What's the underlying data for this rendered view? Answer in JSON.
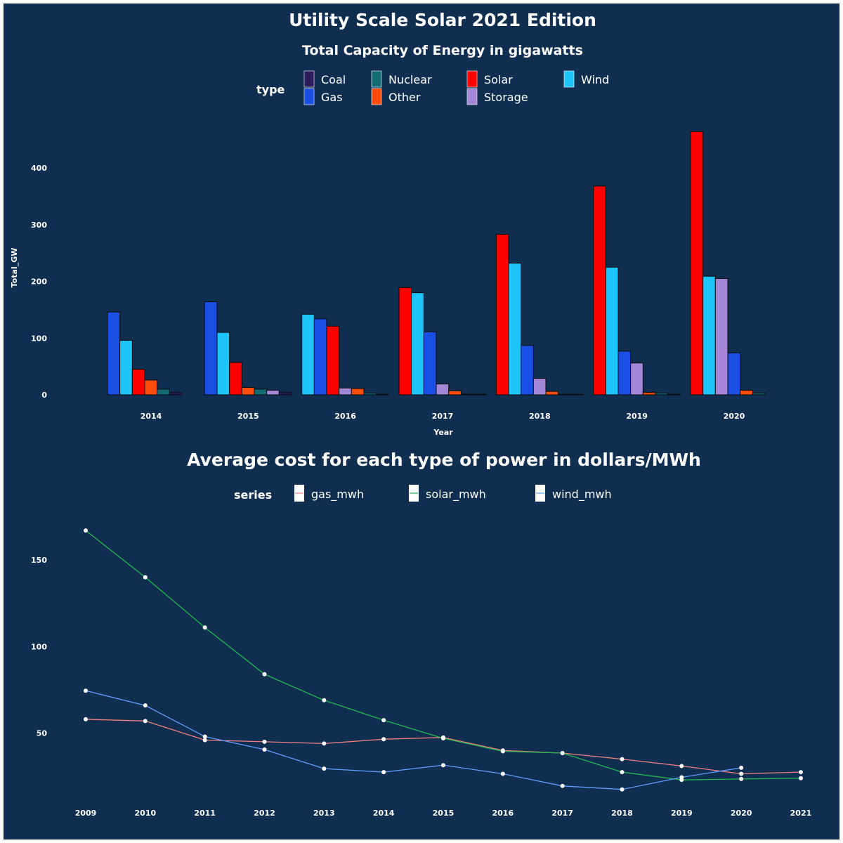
{
  "title": "Utility Scale Solar 2021 Edition",
  "chart_data": [
    {
      "type": "bar",
      "title": "Total Capacity of Energy in gigawatts",
      "xlabel": "Year",
      "ylabel": "Total_GW",
      "ylim": [
        0,
        465
      ],
      "yticks": [
        0,
        100,
        200,
        300,
        400
      ],
      "legend_title": "type",
      "legend_position": "top",
      "legend": [
        {
          "name": "Coal",
          "color": "#2c1a5e"
        },
        {
          "name": "Gas",
          "color": "#1a4fe6"
        },
        {
          "name": "Nuclear",
          "color": "#136b74"
        },
        {
          "name": "Other",
          "color": "#fc4e0a"
        },
        {
          "name": "Solar",
          "color": "#ff0000"
        },
        {
          "name": "Storage",
          "color": "#a387d6"
        },
        {
          "name": "Wind",
          "color": "#1ec5fb"
        }
      ],
      "categories": [
        "2014",
        "2015",
        "2016",
        "2017",
        "2018",
        "2019",
        "2020"
      ],
      "groups": [
        {
          "year": "2014",
          "bars": [
            {
              "type": "Gas",
              "value": 146
            },
            {
              "type": "Wind",
              "value": 96
            },
            {
              "type": "Solar",
              "value": 45
            },
            {
              "type": "Other",
              "value": 26
            },
            {
              "type": "Nuclear",
              "value": 10
            },
            {
              "type": "Coal",
              "value": 4
            }
          ]
        },
        {
          "year": "2015",
          "bars": [
            {
              "type": "Gas",
              "value": 164
            },
            {
              "type": "Wind",
              "value": 110
            },
            {
              "type": "Solar",
              "value": 57
            },
            {
              "type": "Other",
              "value": 13
            },
            {
              "type": "Nuclear",
              "value": 10
            },
            {
              "type": "Storage",
              "value": 8
            },
            {
              "type": "Coal",
              "value": 4
            }
          ]
        },
        {
          "year": "2016",
          "bars": [
            {
              "type": "Wind",
              "value": 142
            },
            {
              "type": "Gas",
              "value": 134
            },
            {
              "type": "Solar",
              "value": 121
            },
            {
              "type": "Storage",
              "value": 12
            },
            {
              "type": "Other",
              "value": 11
            },
            {
              "type": "Nuclear",
              "value": 3
            },
            {
              "type": "Coal",
              "value": 1
            }
          ]
        },
        {
          "year": "2017",
          "bars": [
            {
              "type": "Solar",
              "value": 189
            },
            {
              "type": "Wind",
              "value": 180
            },
            {
              "type": "Gas",
              "value": 111
            },
            {
              "type": "Storage",
              "value": 19
            },
            {
              "type": "Other",
              "value": 7
            },
            {
              "type": "Nuclear",
              "value": 1
            },
            {
              "type": "Coal",
              "value": 1
            }
          ]
        },
        {
          "year": "2018",
          "bars": [
            {
              "type": "Solar",
              "value": 283
            },
            {
              "type": "Wind",
              "value": 232
            },
            {
              "type": "Gas",
              "value": 87
            },
            {
              "type": "Storage",
              "value": 29
            },
            {
              "type": "Other",
              "value": 6
            },
            {
              "type": "Nuclear",
              "value": 1
            },
            {
              "type": "Coal",
              "value": 1
            }
          ]
        },
        {
          "year": "2019",
          "bars": [
            {
              "type": "Solar",
              "value": 368
            },
            {
              "type": "Wind",
              "value": 225
            },
            {
              "type": "Gas",
              "value": 77
            },
            {
              "type": "Storage",
              "value": 56
            },
            {
              "type": "Other",
              "value": 4
            },
            {
              "type": "Nuclear",
              "value": 3
            },
            {
              "type": "Coal",
              "value": 1
            }
          ]
        },
        {
          "year": "2020",
          "bars": [
            {
              "type": "Solar",
              "value": 464
            },
            {
              "type": "Wind",
              "value": 209
            },
            {
              "type": "Storage",
              "value": 205
            },
            {
              "type": "Gas",
              "value": 74
            },
            {
              "type": "Other",
              "value": 8
            },
            {
              "type": "Nuclear",
              "value": 3
            }
          ]
        }
      ]
    },
    {
      "type": "line",
      "title": "Average cost for each type of power in dollars/MWh",
      "xlabel": "",
      "ylabel": "",
      "ylim": [
        15,
        170
      ],
      "yticks": [
        50,
        100,
        150
      ],
      "x": [
        2009,
        2010,
        2011,
        2012,
        2013,
        2014,
        2015,
        2016,
        2017,
        2018,
        2019,
        2020,
        2021
      ],
      "legend_title": "series",
      "legend_position": "top",
      "series": [
        {
          "name": "gas_mwh",
          "color": "#f08080",
          "values": [
            58,
            57,
            46,
            45,
            44,
            46.5,
            47.5,
            40,
            38.5,
            35,
            31,
            26.5,
            27.5
          ]
        },
        {
          "name": "solar_mwh",
          "color": "#1fb84f",
          "values": [
            167,
            140,
            111,
            84,
            69,
            57.5,
            47,
            39.5,
            38.5,
            27.5,
            23,
            23.5,
            24
          ]
        },
        {
          "name": "wind_mwh",
          "color": "#619cff",
          "values": [
            74.5,
            66,
            48,
            40.5,
            29.5,
            27.5,
            31.5,
            26.5,
            19.5,
            17.5,
            24.5,
            30,
            null
          ]
        }
      ]
    }
  ]
}
